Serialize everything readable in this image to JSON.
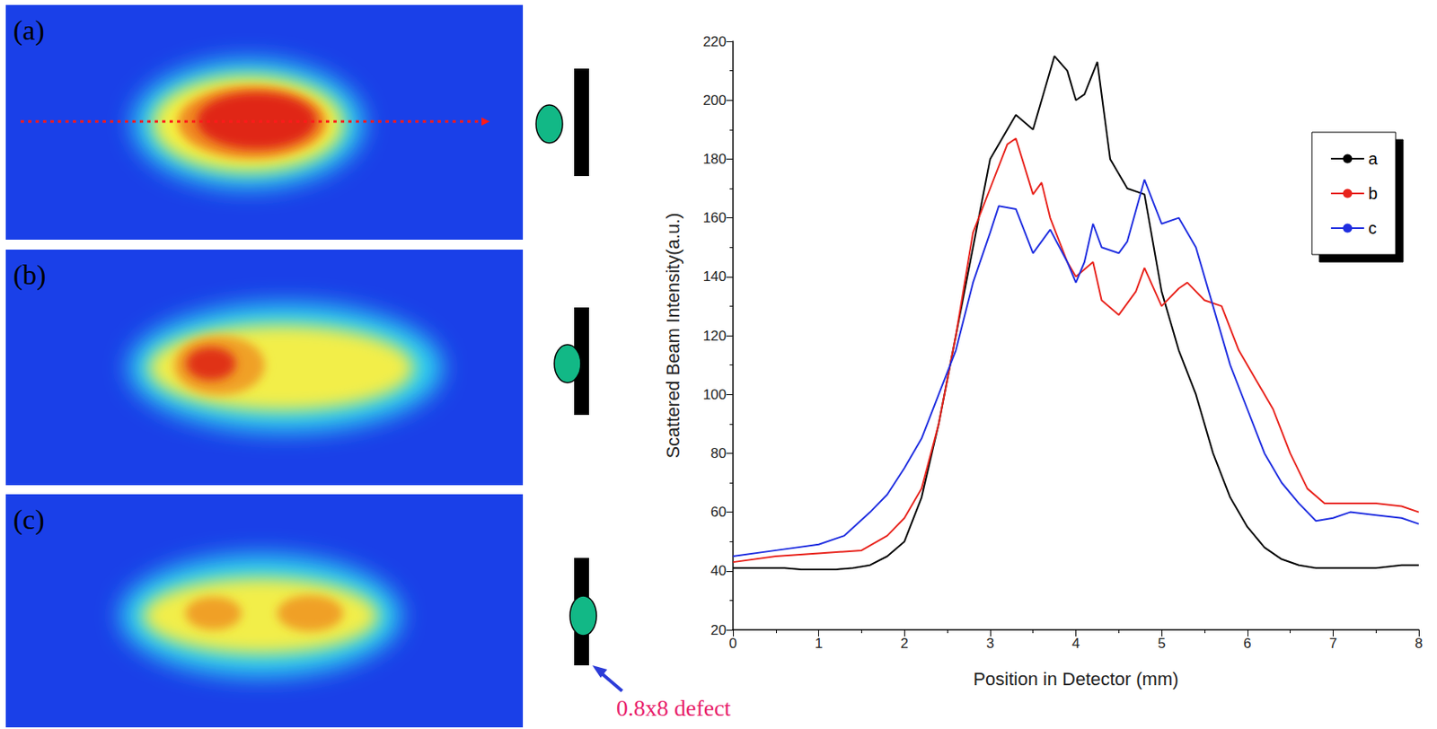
{
  "panels": [
    "(a)",
    "(b)",
    "(c)"
  ],
  "annotation": "0.8x8 defect",
  "chart_data": {
    "type": "line",
    "x_label": "Position in Detector (mm)",
    "y_label": "Scattered Beam Intensity(a.u.)",
    "xlim": [
      0,
      8
    ],
    "xticks": [
      0,
      1,
      2,
      3,
      4,
      5,
      6,
      7,
      8
    ],
    "ylim": [
      20,
      220
    ],
    "yticks": [
      20,
      40,
      60,
      80,
      100,
      120,
      140,
      160,
      180,
      200,
      220
    ],
    "grid": false,
    "legend": "upper right",
    "series": [
      {
        "name": "a",
        "color": "#000000",
        "x": [
          0,
          0.2,
          0.4,
          0.6,
          0.8,
          1.0,
          1.2,
          1.4,
          1.6,
          1.8,
          2.0,
          2.2,
          2.4,
          2.6,
          2.8,
          3.0,
          3.2,
          3.3,
          3.5,
          3.6,
          3.75,
          3.9,
          4.0,
          4.1,
          4.25,
          4.4,
          4.6,
          4.8,
          5.0,
          5.2,
          5.4,
          5.6,
          5.8,
          6.0,
          6.2,
          6.4,
          6.6,
          6.8,
          7.0,
          7.2,
          7.5,
          7.8,
          8.0
        ],
        "values": [
          41,
          41,
          41,
          41,
          40.5,
          40.5,
          40.5,
          41,
          42,
          45,
          50,
          65,
          90,
          120,
          150,
          180,
          190,
          195,
          190,
          200,
          215,
          210,
          200,
          202,
          213,
          180,
          170,
          168,
          135,
          115,
          100,
          80,
          65,
          55,
          48,
          44,
          42,
          41,
          41,
          41,
          41,
          42,
          42
        ]
      },
      {
        "name": "b",
        "color": "#e8231c",
        "x": [
          0,
          0.5,
          1.0,
          1.5,
          1.8,
          2.0,
          2.2,
          2.4,
          2.6,
          2.8,
          3.0,
          3.2,
          3.3,
          3.5,
          3.6,
          3.7,
          3.9,
          4.0,
          4.2,
          4.3,
          4.5,
          4.7,
          4.8,
          5.0,
          5.2,
          5.3,
          5.5,
          5.7,
          5.9,
          6.1,
          6.3,
          6.5,
          6.7,
          6.9,
          7.2,
          7.5,
          7.8,
          8.0
        ],
        "values": [
          43,
          45,
          46,
          47,
          52,
          58,
          68,
          90,
          120,
          155,
          170,
          185,
          187,
          168,
          172,
          160,
          145,
          140,
          145,
          132,
          127,
          135,
          143,
          130,
          136,
          138,
          132,
          130,
          115,
          105,
          95,
          80,
          68,
          63,
          63,
          63,
          62,
          60
        ]
      },
      {
        "name": "c",
        "color": "#1f2ee0",
        "x": [
          0,
          0.5,
          1.0,
          1.3,
          1.6,
          1.8,
          2.0,
          2.2,
          2.4,
          2.6,
          2.8,
          3.0,
          3.1,
          3.3,
          3.5,
          3.7,
          3.9,
          4.0,
          4.1,
          4.2,
          4.3,
          4.5,
          4.6,
          4.8,
          5.0,
          5.2,
          5.4,
          5.6,
          5.8,
          6.0,
          6.2,
          6.4,
          6.6,
          6.8,
          7.0,
          7.2,
          7.5,
          7.8,
          8.0
        ],
        "values": [
          45,
          47,
          49,
          52,
          60,
          66,
          75,
          85,
          100,
          115,
          138,
          155,
          164,
          163,
          148,
          156,
          145,
          138,
          145,
          158,
          150,
          148,
          152,
          173,
          158,
          160,
          150,
          130,
          110,
          95,
          80,
          70,
          63,
          57,
          58,
          60,
          59,
          58,
          56
        ]
      }
    ]
  }
}
